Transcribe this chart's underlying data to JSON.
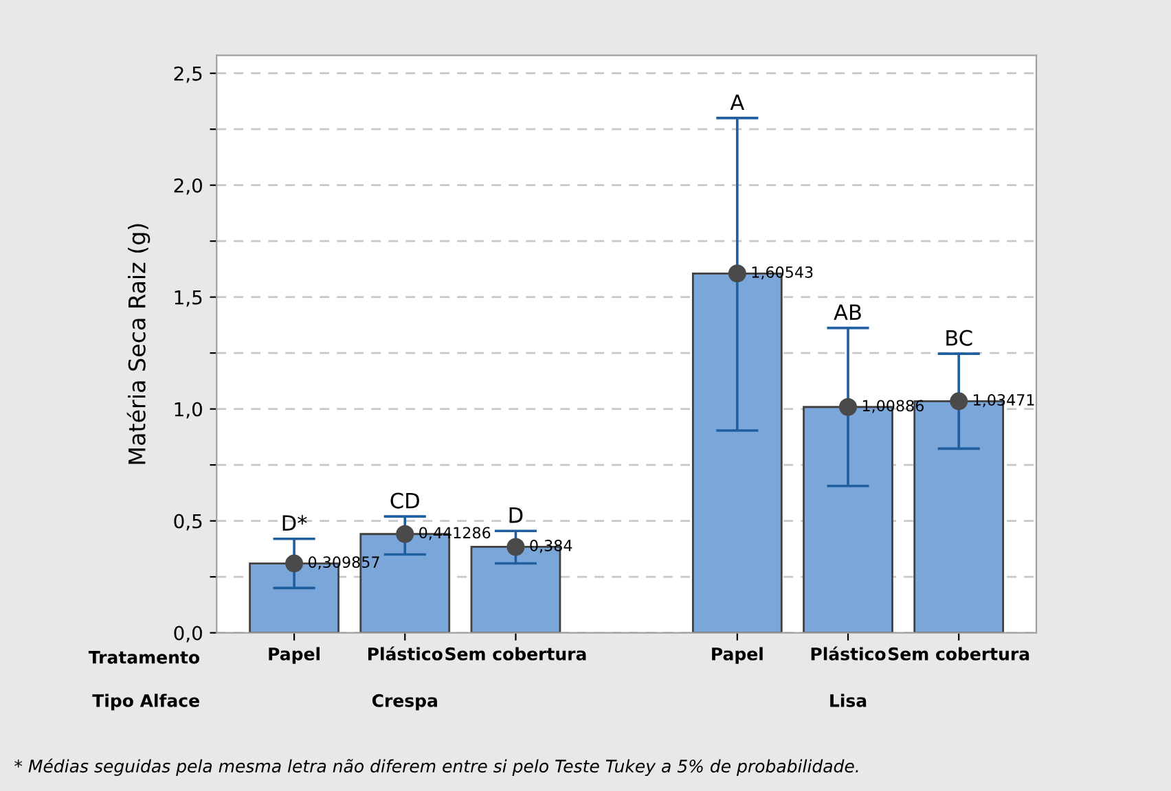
{
  "chart_data": {
    "type": "bar",
    "ylabel": "Matéria Seca Raiz (g)",
    "categories": [
      "Papel",
      "Plástico",
      "Sem cobertura",
      null,
      "Papel",
      "Plástico",
      "Sem cobertura"
    ],
    "series": [
      {
        "color": "#7ba6d9",
        "values": [
          0.309857,
          0.441286,
          0.384,
          null,
          1.60543,
          1.00886,
          1.03471
        ],
        "errors": [
          [
            0.2,
            0.42
          ],
          [
            0.35,
            0.52
          ],
          [
            0.31,
            0.455
          ],
          null,
          [
            0.904,
            2.3
          ],
          [
            0.656,
            1.362
          ],
          [
            0.823,
            1.247
          ]
        ]
      },
      {
        "type": "scatter",
        "color": "#4a4a4a",
        "marker": "circle",
        "values": [
          0.309857,
          0.441286,
          0.384,
          null,
          1.60543,
          1.00886,
          1.03471
        ]
      }
    ],
    "value_labels": [
      "0,309857",
      "0,441286",
      "0,384",
      null,
      "1,60543",
      "1,00886",
      "1,03471"
    ],
    "ylim": [
      0,
      2.58
    ],
    "yticks": [
      {
        "value": 0,
        "label": "0,0"
      },
      {
        "value": 0.25,
        "label": null
      },
      {
        "value": 0.5,
        "label": "0,5"
      },
      {
        "value": 0.75,
        "label": null
      },
      {
        "value": 1.0,
        "label": "1,0"
      },
      {
        "value": 1.25,
        "label": null
      },
      {
        "value": 1.5,
        "label": "1,5"
      },
      {
        "value": 1.75,
        "label": null
      },
      {
        "value": 2.0,
        "label": "2,0"
      },
      {
        "value": 2.25,
        "label": null
      },
      {
        "value": 2.5,
        "label": "2,5"
      }
    ],
    "grid": "y",
    "annotations": [
      "D*",
      "CD",
      "D",
      "A",
      "AB",
      "BC",
      "Tratamento",
      "Tipo Alface",
      "Crespa",
      "Lisa",
      "* Médias seguidas pela mesma letra não diferem entre si pelo Teste Tukey a 5% de probabilidade."
    ]
  }
}
